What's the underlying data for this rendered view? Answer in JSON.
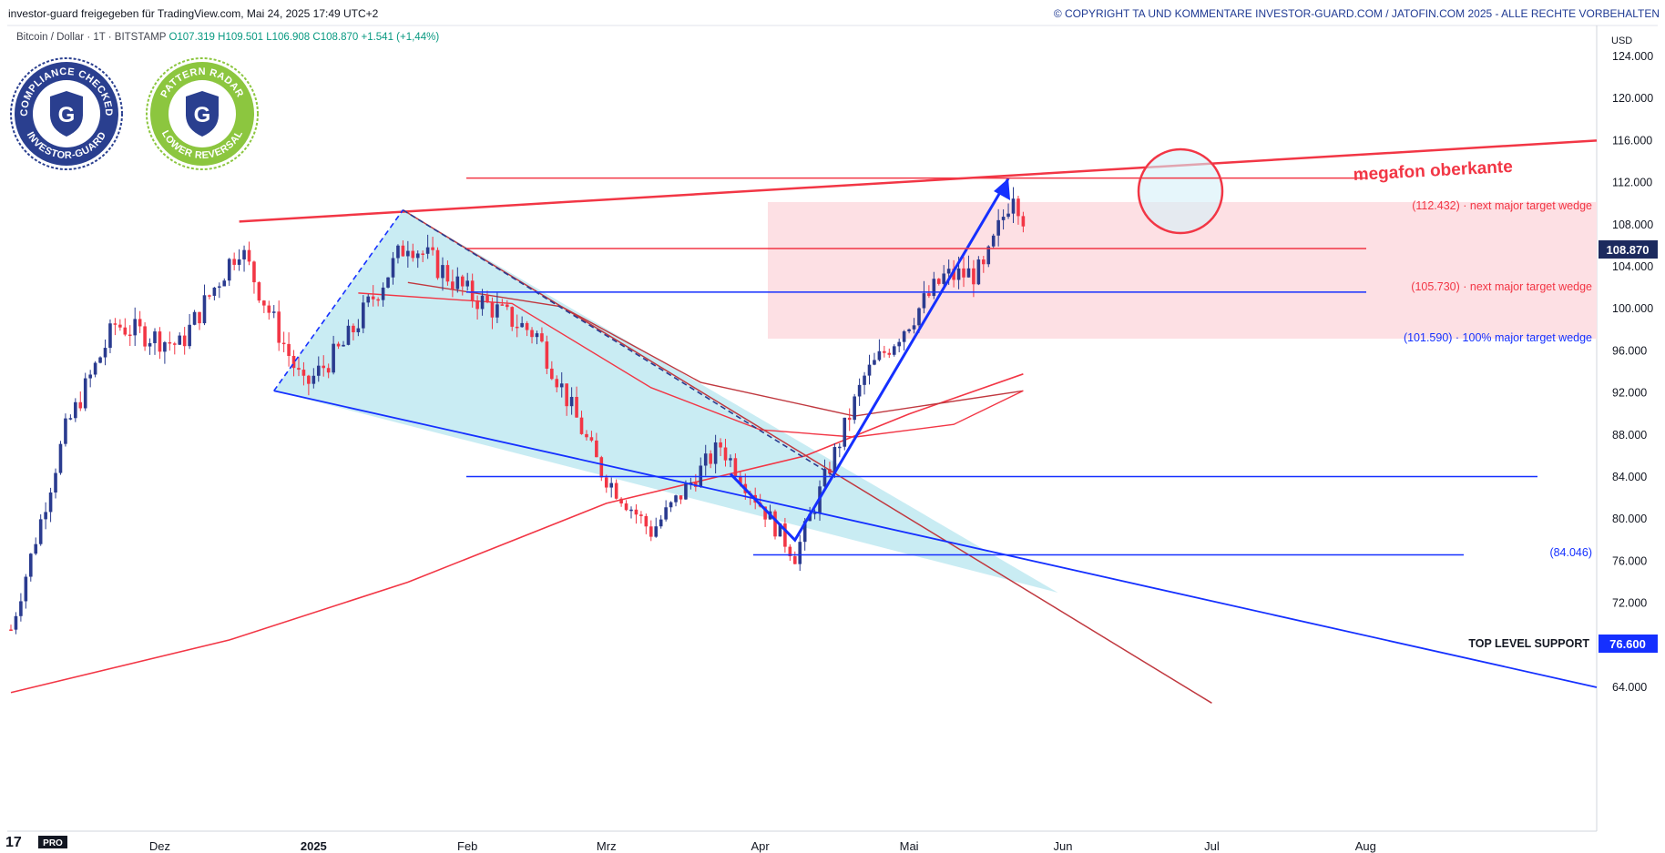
{
  "header": {
    "left_text": "investor-guard freigegeben für TradingView.com, Mai 24, 2025 17:49 UTC+2",
    "right_text": "© COPYRIGHT TA UND KOMMENTARE INVESTOR-GUARD.COM / JATOFIN.COM 2025 - ALLE RECHTE VORBEHALTEN"
  },
  "symbol": {
    "name": "Bitcoin / Dollar · 1T · BITSTAMP",
    "open": "O107.319",
    "high": "H109.501",
    "low": "L106.908",
    "close": "C108.870",
    "change": "+1.541 (+1,44%)"
  },
  "badges": {
    "left": {
      "top_text": "COMPLIANCE CHECKED",
      "bottom_text": "INVESTOR-GUARD",
      "letter": "G"
    },
    "right": {
      "top_text": "PATTERN RADAR",
      "bottom_text": "LOWER REVERSAL",
      "letter": "G"
    }
  },
  "branding": {
    "logo_text": "17",
    "pro_label": "PRO"
  },
  "colors": {
    "up": "#2a3b8f",
    "down": "#f23645",
    "wedge_fill": "#c9ecf3",
    "target_zone": "#fde0e4",
    "blue_line": "#1530ff",
    "red_line": "#f23645",
    "ma_dark": "#c0383f"
  },
  "chart_data": {
    "type": "candlestick",
    "currency": "USD",
    "current_price": "108.870",
    "y_axis": {
      "min": 62000,
      "max": 126000,
      "ticks": [
        "124.000",
        "120.000",
        "116.000",
        "112.000",
        "108.000",
        "104.000",
        "100.000",
        "96.000",
        "92.000",
        "88.000",
        "84.000",
        "80.000",
        "76.000",
        "72.000",
        "68.000",
        "64.000"
      ]
    },
    "x_axis": {
      "ticks": [
        "Dez",
        "2025",
        "Feb",
        "Mrz",
        "Apr",
        "Mai",
        "Jun",
        "Jul",
        "Aug"
      ]
    },
    "annotations": {
      "megafon": "megafon oberkante",
      "levels": [
        {
          "value": 112432,
          "label": "(112.432) · next major target wedge",
          "color": "#f23645"
        },
        {
          "value": 105730,
          "label": "(105.730) · next major target wedge",
          "color": "#f23645"
        },
        {
          "value": 101590,
          "label": "(101.590) · 100% major target wedge",
          "color": "#1530ff"
        },
        {
          "value": 84046,
          "label": "(84.046)",
          "color": "#1530ff"
        },
        {
          "value": 76600,
          "label": "TOP LEVEL SUPPORT",
          "color": "#131722",
          "tag": "76.600"
        }
      ]
    },
    "series": [
      {
        "name": "Bitcoin / Dollar",
        "approx_close_path": [
          {
            "date": "2024-11-01",
            "close": 69500
          },
          {
            "date": "2024-11-12",
            "close": 88500
          },
          {
            "date": "2024-11-22",
            "close": 98500
          },
          {
            "date": "2024-12-05",
            "close": 96500
          },
          {
            "date": "2024-12-17",
            "close": 106000
          },
          {
            "date": "2024-12-30",
            "close": 92500
          },
          {
            "date": "2025-01-07",
            "close": 96500
          },
          {
            "date": "2025-01-20",
            "close": 106500
          },
          {
            "date": "2025-02-01",
            "close": 101500
          },
          {
            "date": "2025-02-15",
            "close": 97500
          },
          {
            "date": "2025-02-28",
            "close": 84500
          },
          {
            "date": "2025-03-10",
            "close": 78800
          },
          {
            "date": "2025-03-24",
            "close": 87000
          },
          {
            "date": "2025-04-08",
            "close": 76500
          },
          {
            "date": "2025-04-22",
            "close": 93500
          },
          {
            "date": "2025-05-08",
            "close": 103000
          },
          {
            "date": "2025-05-16",
            "close": 103500
          },
          {
            "date": "2025-05-22",
            "close": 111500
          },
          {
            "date": "2025-05-24",
            "close": 108870
          }
        ]
      }
    ]
  }
}
